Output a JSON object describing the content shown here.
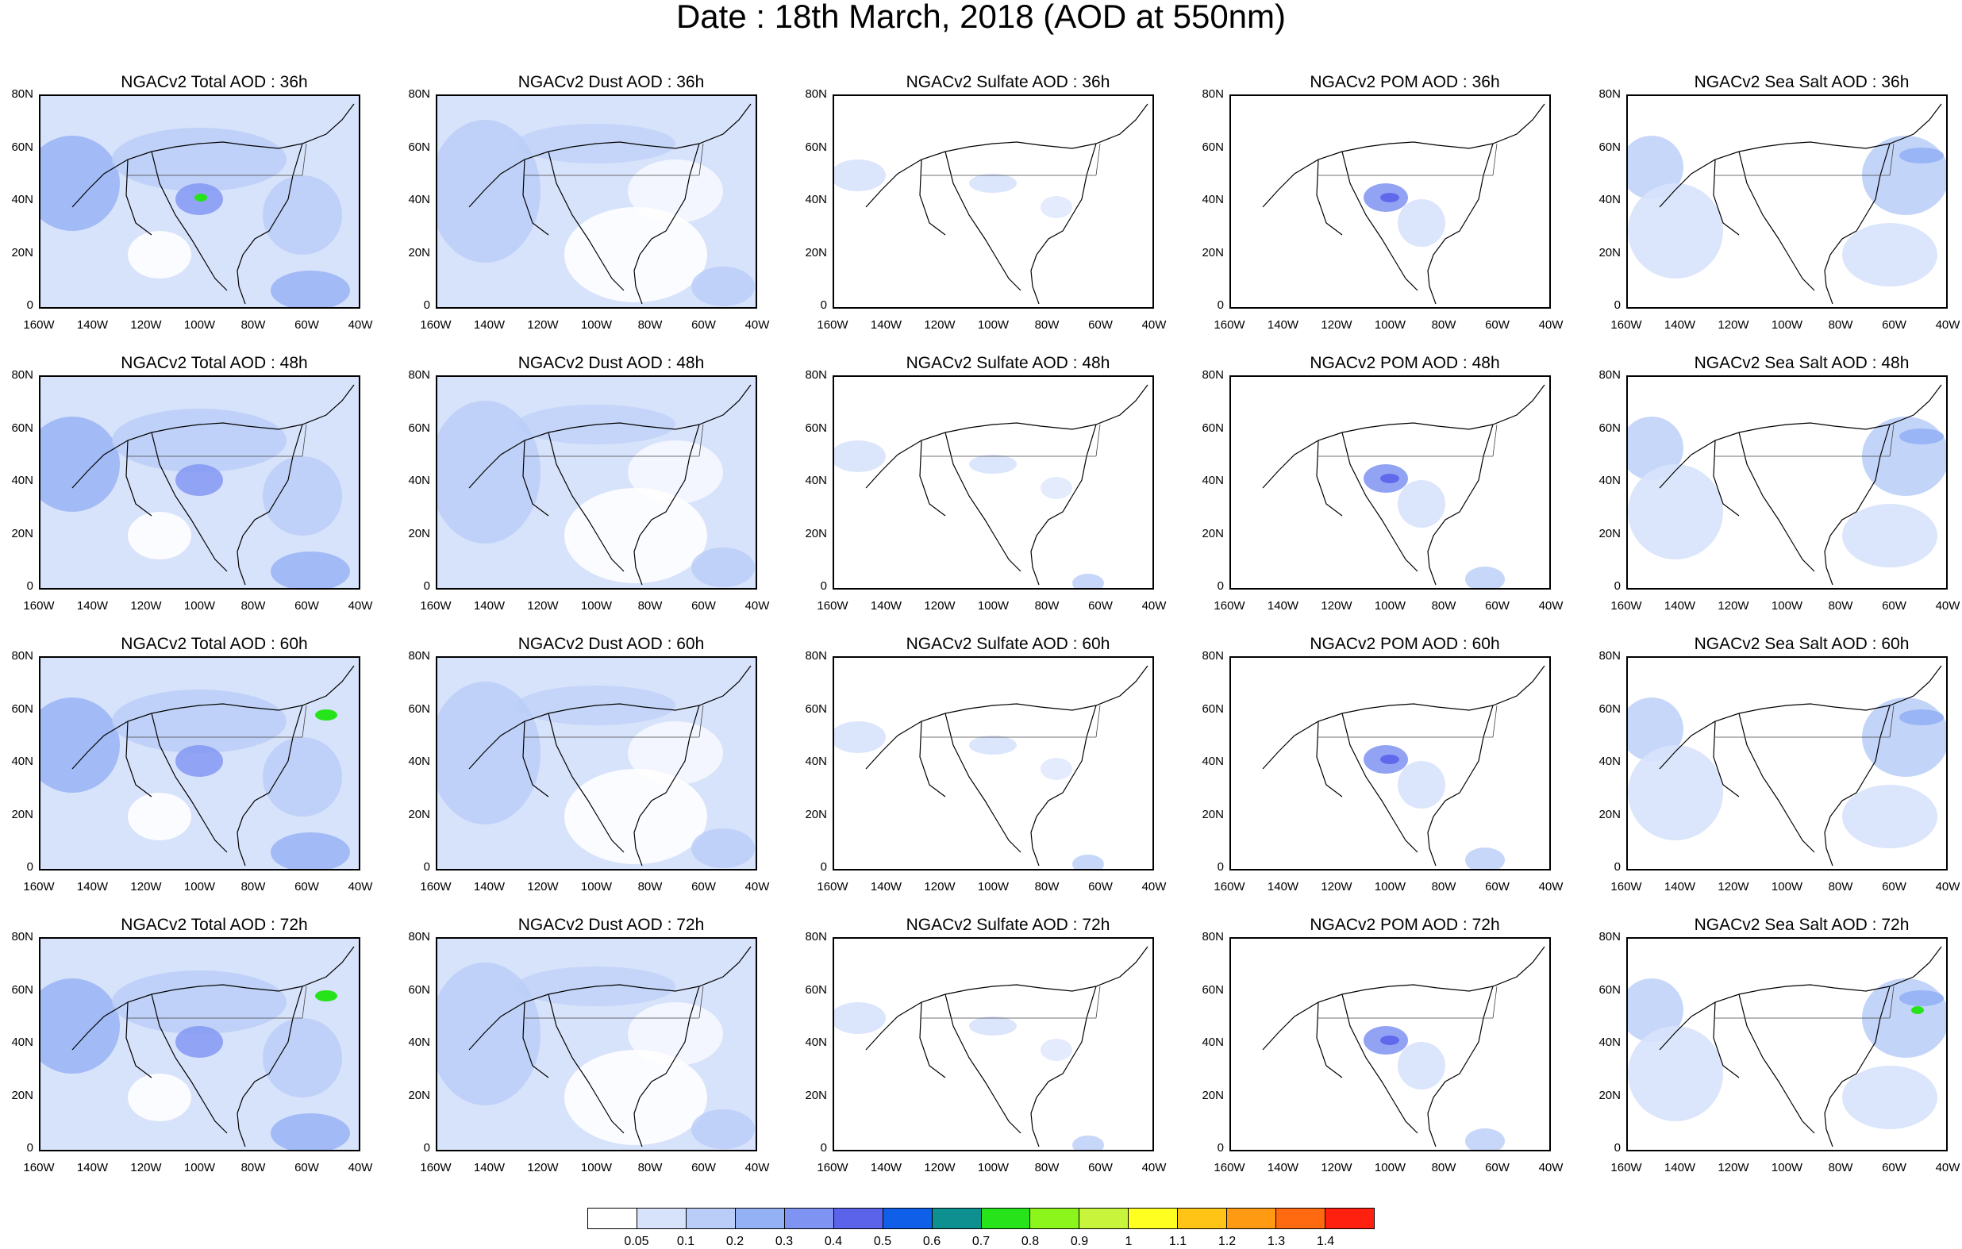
{
  "title": "Date : 18th March, 2018 (AOD at 550nm)",
  "x_ticks": [
    "160W",
    "140W",
    "120W",
    "100W",
    "80W",
    "60W",
    "40W"
  ],
  "y_ticks": [
    "80N",
    "60N",
    "40N",
    "20N",
    "0"
  ],
  "panels": [
    {
      "title": "NGACv2 Total AOD : 36h",
      "layer": "total",
      "intensity": 1.0
    },
    {
      "title": "NGACv2 Dust AOD : 36h",
      "layer": "dust",
      "intensity": 0.7
    },
    {
      "title": "NGACv2 Sulfate AOD : 36h",
      "layer": "sulfate",
      "intensity": 0.15
    },
    {
      "title": "NGACv2 POM AOD : 36h",
      "layer": "pom",
      "intensity": 0.4
    },
    {
      "title": "NGACv2 Sea Salt AOD : 36h",
      "layer": "seasalt",
      "intensity": 0.5
    },
    {
      "title": "NGACv2 Total AOD : 48h",
      "layer": "total",
      "intensity": 1.0
    },
    {
      "title": "NGACv2 Dust AOD : 48h",
      "layer": "dust",
      "intensity": 0.7
    },
    {
      "title": "NGACv2 Sulfate AOD : 48h",
      "layer": "sulfate",
      "intensity": 0.2
    },
    {
      "title": "NGACv2 POM AOD : 48h",
      "layer": "pom",
      "intensity": 0.4
    },
    {
      "title": "NGACv2 Sea Salt AOD : 48h",
      "layer": "seasalt",
      "intensity": 0.5
    },
    {
      "title": "NGACv2 Total AOD : 60h",
      "layer": "total",
      "intensity": 1.0
    },
    {
      "title": "NGACv2 Dust AOD : 60h",
      "layer": "dust",
      "intensity": 0.7
    },
    {
      "title": "NGACv2 Sulfate AOD : 60h",
      "layer": "sulfate",
      "intensity": 0.2
    },
    {
      "title": "NGACv2 POM AOD : 60h",
      "layer": "pom",
      "intensity": 0.45
    },
    {
      "title": "NGACv2 Sea Salt AOD : 60h",
      "layer": "seasalt",
      "intensity": 0.6
    },
    {
      "title": "NGACv2 Total AOD : 72h",
      "layer": "total",
      "intensity": 1.0
    },
    {
      "title": "NGACv2 Dust AOD : 72h",
      "layer": "dust",
      "intensity": 0.7
    },
    {
      "title": "NGACv2 Sulfate AOD : 72h",
      "layer": "sulfate",
      "intensity": 0.2
    },
    {
      "title": "NGACv2 POM AOD : 72h",
      "layer": "pom",
      "intensity": 0.45
    },
    {
      "title": "NGACv2 Sea Salt  AOD : 72h",
      "layer": "seasalt",
      "intensity": 0.65
    }
  ],
  "colorbar": {
    "labels": [
      "0.05",
      "0.1",
      "0.2",
      "0.3",
      "0.4",
      "0.5",
      "0.6",
      "0.7",
      "0.8",
      "0.9",
      "1",
      "1.1",
      "1.2",
      "1.3",
      "1.4"
    ],
    "colors": [
      "#ffffff",
      "#d7e2fb",
      "#b9cdf8",
      "#95b1f5",
      "#7f93f2",
      "#5b63ea",
      "#0f5fe8",
      "#0f9090",
      "#27e31a",
      "#8cf51c",
      "#c8f53c",
      "#ffff20",
      "#ffc415",
      "#ff9a12",
      "#ff6a10",
      "#ff2010"
    ]
  }
}
